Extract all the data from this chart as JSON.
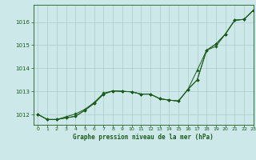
{
  "title": "Graphe pression niveau de la mer (hPa)",
  "bg_color": "#cce8e8",
  "grid_color": "#aacccc",
  "line_color": "#1a5c1a",
  "xlim": [
    -0.5,
    23
  ],
  "ylim": [
    1011.55,
    1016.75
  ],
  "yticks": [
    1012,
    1013,
    1014,
    1015,
    1016
  ],
  "xticks": [
    0,
    1,
    2,
    3,
    4,
    5,
    6,
    7,
    8,
    9,
    10,
    11,
    12,
    13,
    14,
    15,
    16,
    17,
    18,
    19,
    20,
    21,
    22,
    23
  ],
  "series": {
    "line1": [
      1012.0,
      1011.78,
      1011.78,
      1011.85,
      1011.92,
      1012.18,
      1012.48,
      1012.88,
      1013.02,
      1013.0,
      1012.98,
      1012.88,
      1012.88,
      1012.68,
      1012.62,
      1012.58,
      1013.08,
      1013.92,
      1014.78,
      1014.95,
      1015.48,
      1016.08,
      1016.12,
      1016.52
    ],
    "line2": [
      1012.0,
      1011.78,
      1011.78,
      1011.85,
      1011.92,
      1012.18,
      1012.48,
      1012.88,
      1013.02,
      1013.0,
      1012.98,
      1012.88,
      1012.88,
      1012.68,
      1012.62,
      1012.58,
      1013.08,
      1013.5,
      1014.78,
      1015.05,
      1015.48,
      1016.08,
      1016.12,
      1016.52
    ],
    "line3": [
      1012.0,
      1011.78,
      1011.78,
      1011.9,
      1012.02,
      1012.22,
      1012.52,
      1012.92,
      1013.02,
      1013.0,
      1012.98,
      1012.88,
      1012.88,
      1012.68,
      1012.62,
      1012.58,
      1013.08,
      1013.5,
      1014.78,
      1015.05,
      1015.48,
      1016.08,
      1016.12,
      1016.52
    ]
  }
}
